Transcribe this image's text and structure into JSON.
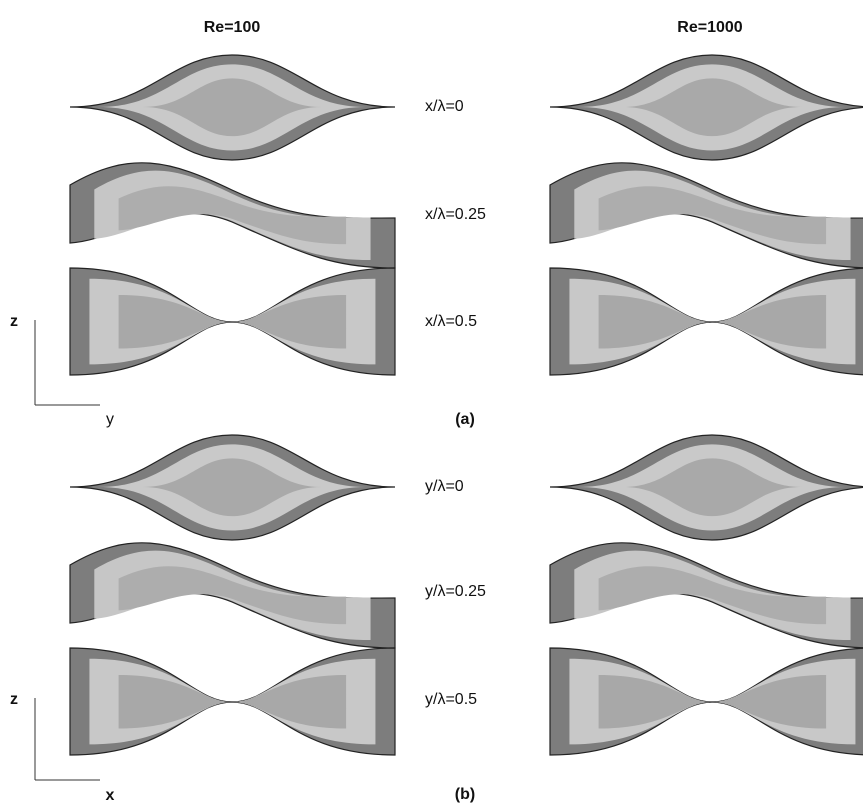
{
  "column_titles": [
    "Re=100",
    "Re=1000"
  ],
  "panels": [
    {
      "label": "(a)",
      "row_labels": [
        "x/λ=0",
        "x/λ=0.25",
        "x/λ=0.5"
      ],
      "axis_vertical": "z",
      "axis_horizontal": "y"
    },
    {
      "label": "(b)",
      "row_labels": [
        "y/λ=0",
        "y/λ=0.25",
        "y/λ=0.5"
      ],
      "axis_vertical": "z",
      "axis_horizontal": "x"
    }
  ]
}
